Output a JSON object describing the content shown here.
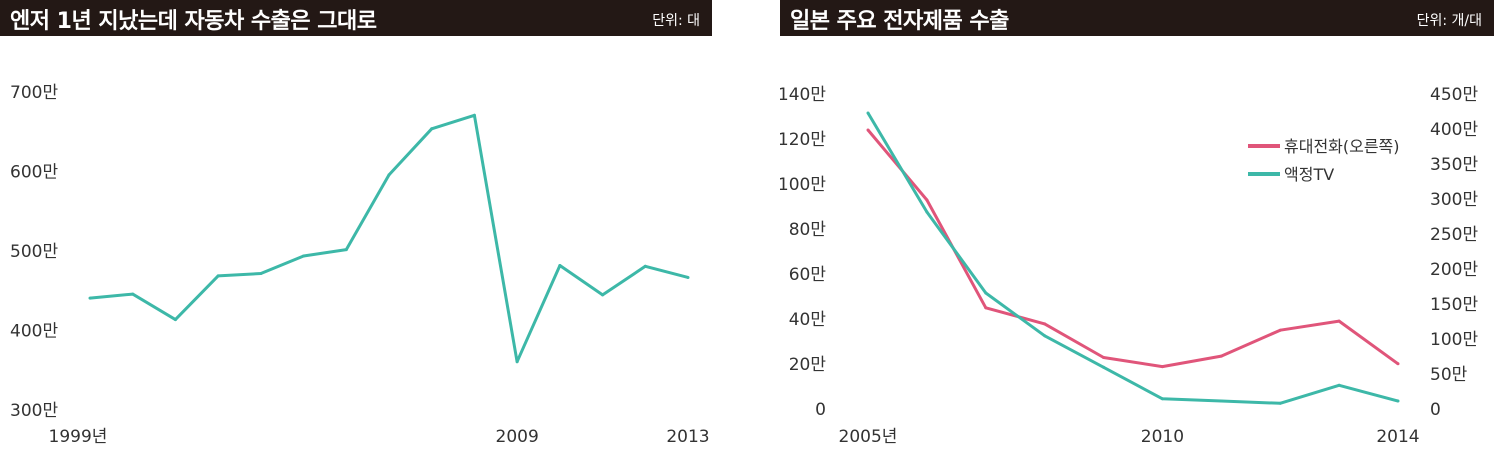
{
  "left": {
    "title": "엔저 1년 지났는데 자동차 수출은 그대로",
    "unit": "단위: 대"
  },
  "right": {
    "title": "일본 주요 전자제품 수출",
    "unit": "단위: 개/대"
  },
  "colors": {
    "teal": "#3db8a8",
    "pink": "#e0557a",
    "header": "#231815"
  },
  "chart_data": [
    {
      "type": "line",
      "title": "엔저 1년 지났는데 자동차 수출은 그대로",
      "unit": "단위: 대",
      "x": [
        1999,
        2000,
        2001,
        2002,
        2003,
        2004,
        2005,
        2006,
        2007,
        2008,
        2009,
        2010,
        2011,
        2012,
        2013
      ],
      "x_tick_labels": [
        {
          "x": 1999,
          "label": "1999년"
        },
        {
          "x": 2009,
          "label": "2009"
        },
        {
          "x": 2013,
          "label": "2013"
        }
      ],
      "ylim": [
        3000000,
        7000000
      ],
      "y_ticks": [
        {
          "v": 3000000,
          "label": "300만"
        },
        {
          "v": 4000000,
          "label": "400만"
        },
        {
          "v": 5000000,
          "label": "500만"
        },
        {
          "v": 6000000,
          "label": "600만"
        },
        {
          "v": 7000000,
          "label": "700만"
        }
      ],
      "series": [
        {
          "color": "#3db8a8",
          "values": [
            4420000,
            4470000,
            4150000,
            4700000,
            4730000,
            4950000,
            5030000,
            5970000,
            6550000,
            6720000,
            3620000,
            4830000,
            4460000,
            4820000,
            4680000
          ]
        }
      ]
    },
    {
      "type": "line",
      "title": "일본 주요 전자제품 수출",
      "unit": "단위: 개/대",
      "x": [
        2005,
        2006,
        2007,
        2008,
        2009,
        2010,
        2011,
        2012,
        2013,
        2014
      ],
      "x_tick_labels": [
        {
          "x": 2005,
          "label": "2005년"
        },
        {
          "x": 2010,
          "label": "2010"
        },
        {
          "x": 2014,
          "label": "2014"
        }
      ],
      "ylim_left": [
        0,
        1400000
      ],
      "ylim_right": [
        0,
        4500000
      ],
      "y_ticks_left": [
        {
          "v": 0,
          "label": "0"
        },
        {
          "v": 200000,
          "label": "20만"
        },
        {
          "v": 400000,
          "label": "40만"
        },
        {
          "v": 600000,
          "label": "60만"
        },
        {
          "v": 800000,
          "label": "80만"
        },
        {
          "v": 1000000,
          "label": "100만"
        },
        {
          "v": 1200000,
          "label": "120만"
        },
        {
          "v": 1400000,
          "label": "140만"
        }
      ],
      "y_ticks_right": [
        {
          "v": 0,
          "label": "0"
        },
        {
          "v": 500000,
          "label": "50만"
        },
        {
          "v": 1000000,
          "label": "100만"
        },
        {
          "v": 1500000,
          "label": "150만"
        },
        {
          "v": 2000000,
          "label": "200만"
        },
        {
          "v": 2500000,
          "label": "250만"
        },
        {
          "v": 3000000,
          "label": "300만"
        },
        {
          "v": 3500000,
          "label": "350만"
        },
        {
          "v": 4000000,
          "label": "400만"
        },
        {
          "v": 4500000,
          "label": "450만"
        }
      ],
      "legend_position": "top-right",
      "series": [
        {
          "name": "휴대전화(오른쪽)",
          "axis": "right",
          "color": "#e0557a",
          "values": [
            4000000,
            3000000,
            1460000,
            1230000,
            750000,
            620000,
            770000,
            1140000,
            1270000,
            660000
          ]
        },
        {
          "name": "액정TV",
          "axis": "left",
          "color": "#3db8a8",
          "values": [
            1320000,
            880000,
            520000,
            330000,
            190000,
            50000,
            40000,
            30000,
            110000,
            40000
          ]
        }
      ]
    }
  ]
}
